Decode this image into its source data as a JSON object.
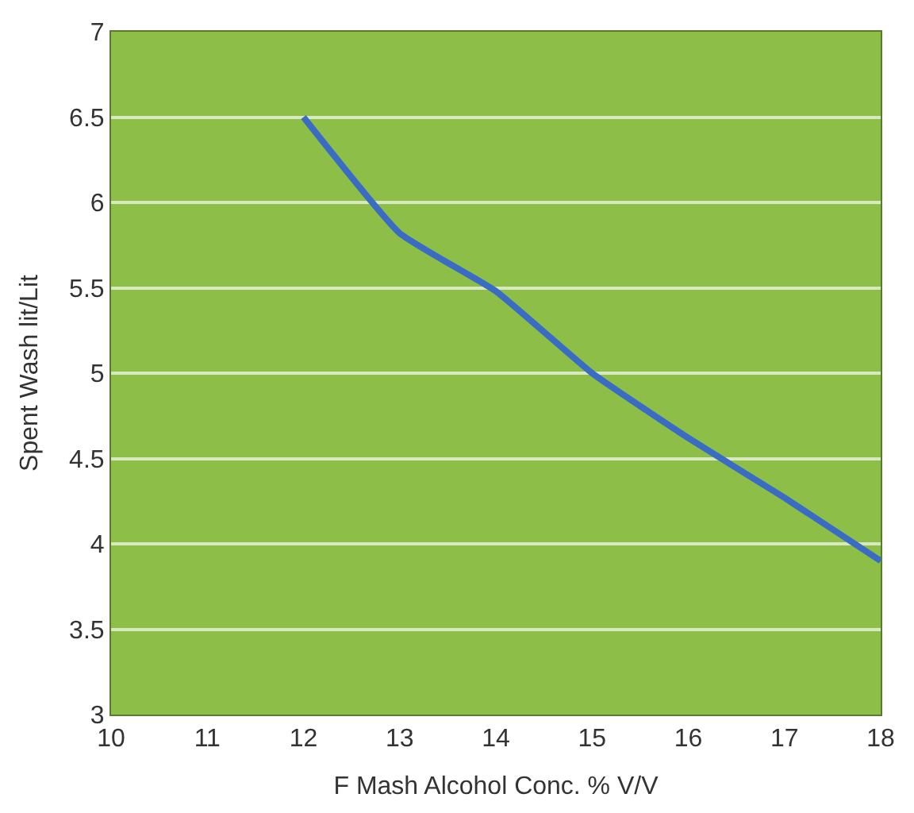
{
  "chart_data": {
    "type": "line",
    "x": [
      12,
      13,
      14,
      15,
      16,
      17,
      18
    ],
    "series": [
      {
        "color": "#3b6cc4",
        "values": [
          6.5,
          5.82,
          5.48,
          5.0,
          4.62,
          4.27,
          3.9
        ]
      }
    ],
    "xlabel": "F Mash Alcohol Conc. % V/V",
    "ylabel": "Spent Wash lit/Lit",
    "xlim": [
      10,
      18
    ],
    "xticks": [
      10,
      11,
      12,
      13,
      14,
      15,
      16,
      17,
      18
    ],
    "ylim": [
      3,
      7
    ],
    "yticks": [
      3,
      3.5,
      4,
      4.5,
      5,
      5.5,
      6,
      6.5,
      7
    ],
    "grid": "y",
    "marker": "none",
    "line_style": "solid"
  }
}
